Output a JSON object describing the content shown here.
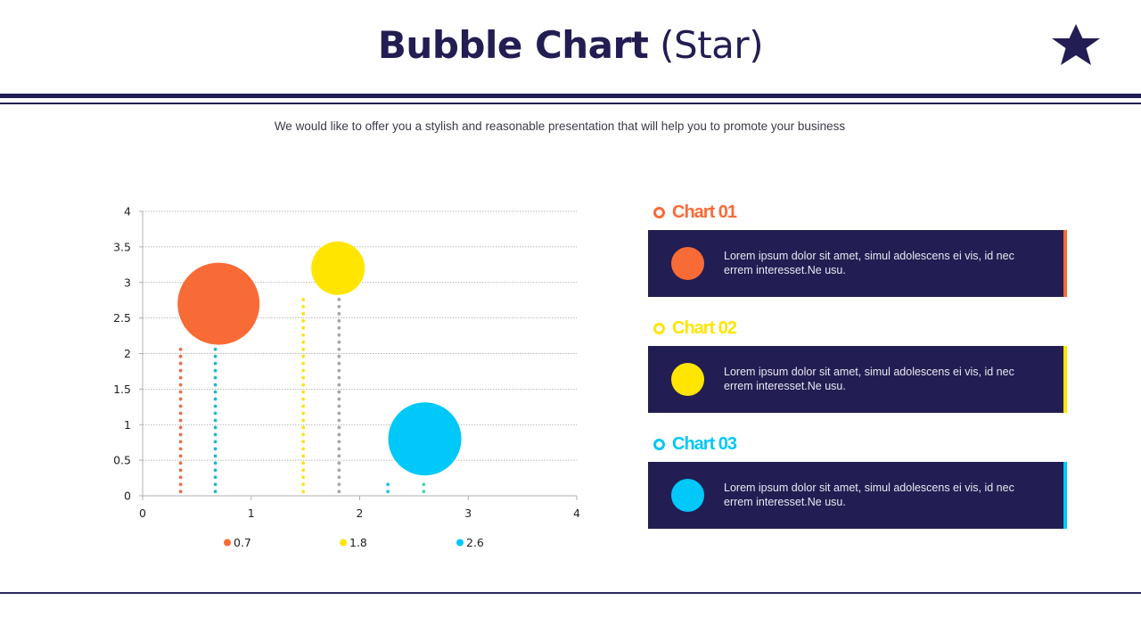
{
  "header": {
    "title_bold": "Bubble Chart",
    "title_light": "(Star)",
    "icon": "star-icon",
    "subtitle": "We would like to offer you a stylish and reasonable presentation that will help you to promote your business"
  },
  "colors": {
    "navy": "#221d52",
    "orange": "#f96b36",
    "yellow": "#ffe500",
    "cyan": "#00c8f8",
    "teal": "#1cb9d0",
    "gray": "#a6a6a6",
    "green": "#3fd6a6"
  },
  "chart_data": {
    "type": "scatter",
    "subtype": "bubble",
    "title": "",
    "xlabel": "",
    "ylabel": "",
    "xlim": [
      0,
      4
    ],
    "ylim": [
      0,
      4
    ],
    "x_ticks": [
      "0",
      "1",
      "2",
      "3",
      "4"
    ],
    "y_ticks": [
      "0",
      "0.5",
      "1",
      "1.5",
      "2",
      "2.5",
      "3",
      "3.5",
      "4"
    ],
    "grid": "horizontal dotted",
    "legend_position": "bottom",
    "series": [
      {
        "name": "0.7",
        "color": "#f96b36",
        "x": 0.7,
        "y": 2.7,
        "size": 46
      },
      {
        "name": "1.8",
        "color": "#ffe500",
        "x": 1.8,
        "y": 3.2,
        "size": 30
      },
      {
        "name": "2.6",
        "color": "#00c8f8",
        "x": 2.6,
        "y": 0.8,
        "size": 41
      }
    ],
    "drop_lines": [
      {
        "x": 0.35,
        "y_top": 2.1,
        "color": "#e8704a"
      },
      {
        "x": 0.67,
        "y_top": 2.1,
        "color": "#1cb9d0"
      },
      {
        "x": 1.48,
        "y_top": 2.8,
        "color": "#ffe500"
      },
      {
        "x": 1.81,
        "y_top": 2.8,
        "color": "#a6a6a6"
      },
      {
        "x": 2.26,
        "y_top": 0.25,
        "color": "#1cc2e8"
      },
      {
        "x": 2.59,
        "y_top": 0.25,
        "color": "#3fd6a6"
      }
    ],
    "legend": [
      "0.7",
      "1.8",
      "2.6"
    ]
  },
  "panels": [
    {
      "title": "Chart 01",
      "color": "#f96b36",
      "text": "Lorem ipsum dolor sit amet, simul adolescens ei vis, id nec errem interesset.Ne usu."
    },
    {
      "title": "Chart 02",
      "color": "#ffe500",
      "text": "Lorem ipsum dolor sit amet, simul adolescens ei vis, id nec errem interesset.Ne usu."
    },
    {
      "title": "Chart 03",
      "color": "#00c8f8",
      "text": "Lorem ipsum dolor sit amet, simul adolescens ei vis, id nec errem interesset.Ne usu."
    }
  ]
}
